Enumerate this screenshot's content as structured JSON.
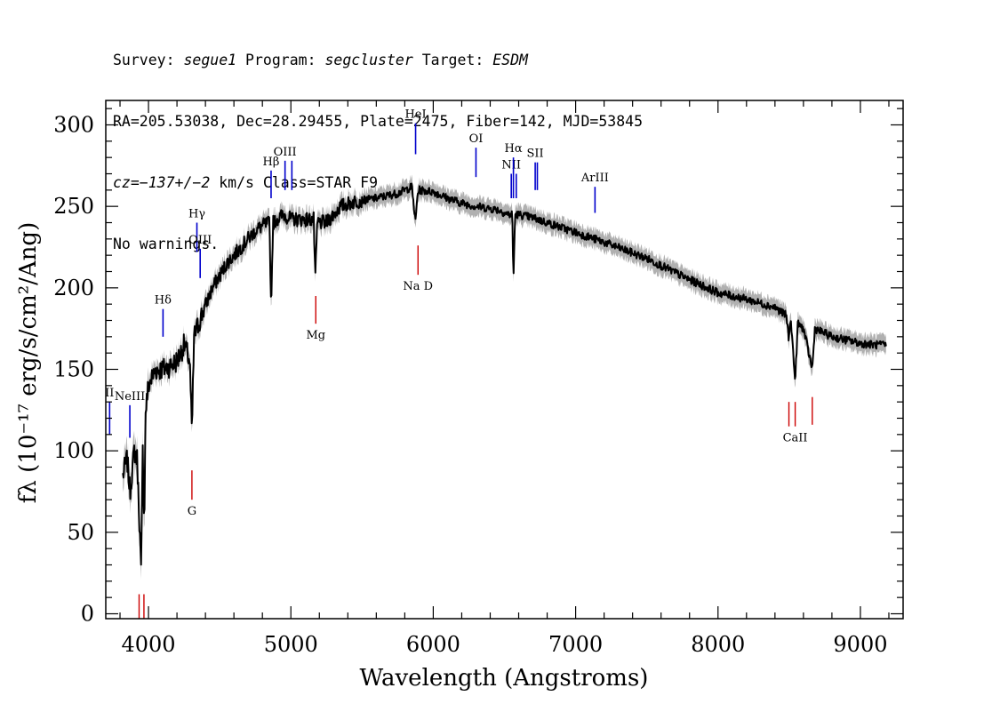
{
  "header": {
    "survey_label": "Survey:",
    "survey": "segue1",
    "program_label": "Program:",
    "program": "segcluster",
    "target_label": "Target:",
    "target": "ESDM",
    "coords": "RA=205.53038, Dec=28.29455, Plate=2475, Fiber=142, MJD=53845",
    "redshift": "cz=−137+/−2",
    "redshift_unit": "km/s Class=STAR F9",
    "warnings": "No warnings."
  },
  "chart_data": {
    "type": "line",
    "title": "",
    "xlabel": "Wavelength (Angstroms)",
    "ylabel": "fλ (10⁻¹⁷ erg/s/cm²/Ang)",
    "xlim": [
      3700,
      9300
    ],
    "ylim": [
      -3,
      315
    ],
    "x_ticks": [
      4000,
      5000,
      6000,
      7000,
      8000,
      9000
    ],
    "y_ticks": [
      0,
      50,
      100,
      150,
      200,
      250,
      300
    ],
    "grid": false,
    "colors": {
      "spectrum": "#000000",
      "error_band": "#b0b0b0",
      "emission": "#0000cc",
      "absorption": "#cc0000"
    },
    "spectrum_anchors": {
      "x": [
        3820,
        3850,
        3870,
        3900,
        3920,
        3935,
        3948,
        3960,
        3970,
        3980,
        4000,
        4050,
        4100,
        4150,
        4200,
        4250,
        4290,
        4305,
        4320,
        4340,
        4380,
        4450,
        4550,
        4650,
        4750,
        4800,
        4850,
        4861,
        4875,
        4900,
        4950,
        5000,
        5100,
        5160,
        5172,
        5185,
        5250,
        5350,
        5450,
        5600,
        5750,
        5850,
        5875,
        5890,
        5900,
        6000,
        6100,
        6200,
        6300,
        6450,
        6530,
        6555,
        6563,
        6575,
        6600,
        6700,
        6800,
        7000,
        7200,
        7500,
        7800,
        8000,
        8200,
        8400,
        8480,
        8498,
        8510,
        8542,
        8560,
        8600,
        8662,
        8680,
        8800,
        9000,
        9100,
        9180
      ],
      "y": [
        85,
        95,
        75,
        100,
        95,
        60,
        25,
        100,
        55,
        125,
        140,
        150,
        150,
        152,
        155,
        165,
        155,
        110,
        170,
        175,
        185,
        200,
        215,
        225,
        235,
        238,
        240,
        188,
        240,
        242,
        245,
        242,
        242,
        242,
        205,
        240,
        240,
        250,
        253,
        255,
        258,
        262,
        240,
        258,
        260,
        259,
        255,
        252,
        250,
        248,
        245,
        245,
        205,
        245,
        245,
        243,
        240,
        234,
        228,
        218,
        205,
        197,
        193,
        188,
        183,
        168,
        183,
        142,
        178,
        175,
        150,
        175,
        170,
        166,
        165,
        165
      ]
    },
    "emission_lines": [
      {
        "label": "II",
        "x": 3727,
        "y_top": 130,
        "y_bottom": 110
      },
      {
        "label": "NeIII",
        "x": 3869,
        "y_top": 128,
        "y_bottom": 108
      },
      {
        "label": "Hδ",
        "x": 4102,
        "y_top": 187,
        "y_bottom": 170
      },
      {
        "label": "Hγ",
        "x": 4340,
        "y_top": 240,
        "y_bottom": 222
      },
      {
        "label": "OIII",
        "x": 4363,
        "y_top": 224,
        "y_bottom": 206
      },
      {
        "label": "Hβ",
        "x": 4861,
        "y_top": 272,
        "y_bottom": 255
      },
      {
        "label": "OIII",
        "x": 4959,
        "y_top": 278,
        "y_bottom": 260
      },
      {
        "label": "",
        "x": 5007,
        "y_top": 278,
        "y_bottom": 260
      },
      {
        "label": "HeI",
        "x": 5876,
        "y_top": 301,
        "y_bottom": 282
      },
      {
        "label": "OI",
        "x": 6300,
        "y_top": 286,
        "y_bottom": 268
      },
      {
        "label": "NII",
        "x": 6548,
        "y_top": 270,
        "y_bottom": 255
      },
      {
        "label": "Hα",
        "x": 6563,
        "y_top": 280,
        "y_bottom": 255
      },
      {
        "label": "",
        "x": 6583,
        "y_top": 270,
        "y_bottom": 255
      },
      {
        "label": "SII",
        "x": 6716,
        "y_top": 277,
        "y_bottom": 260
      },
      {
        "label": "",
        "x": 6731,
        "y_top": 277,
        "y_bottom": 260
      },
      {
        "label": "ArIII",
        "x": 7136,
        "y_top": 262,
        "y_bottom": 246
      }
    ],
    "absorption_lines": [
      {
        "label": "",
        "x": 3934,
        "y_top": 12,
        "y_bottom": -3
      },
      {
        "label": "",
        "x": 3968,
        "y_top": 12,
        "y_bottom": -3
      },
      {
        "label": "G",
        "x": 4305,
        "y_top": 88,
        "y_bottom": 70
      },
      {
        "label": "Mg",
        "x": 5175,
        "y_top": 195,
        "y_bottom": 178
      },
      {
        "label": "Na D",
        "x": 5893,
        "y_top": 226,
        "y_bottom": 208
      },
      {
        "label": "",
        "x": 8498,
        "y_top": 130,
        "y_bottom": 115
      },
      {
        "label": "CaII",
        "x": 8542,
        "y_top": 130,
        "y_bottom": 115
      },
      {
        "label": "",
        "x": 8662,
        "y_top": 133,
        "y_bottom": 116
      }
    ]
  }
}
